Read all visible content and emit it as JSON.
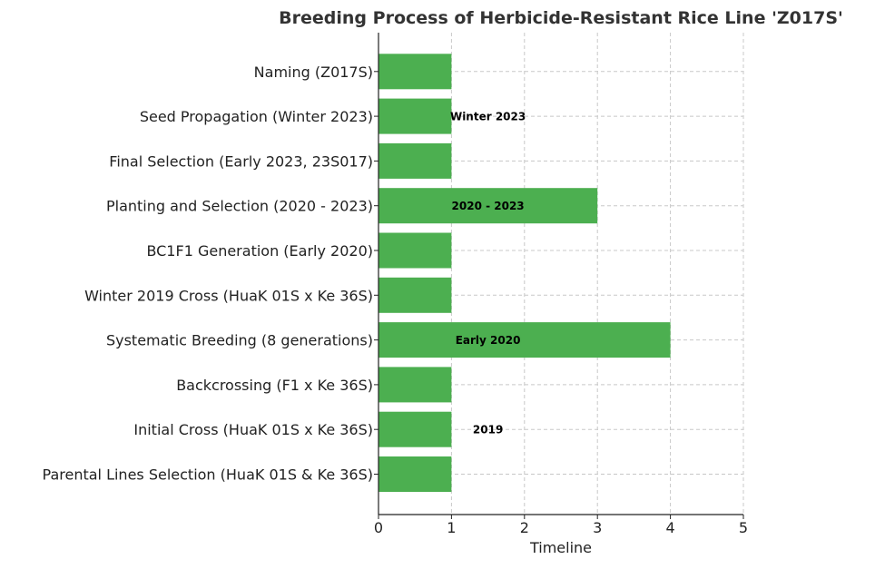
{
  "chart_data": {
    "type": "bar",
    "orientation": "horizontal",
    "title": "Breeding Process of Herbicide-Resistant Rice Line 'Z017S'",
    "xlabel": "Timeline",
    "ylabel": "",
    "xlim": [
      0,
      5
    ],
    "xticks": [
      "0",
      "1",
      "2",
      "3",
      "4",
      "5"
    ],
    "grid": true,
    "categories": [
      "Parental Lines Selection (HuaK 01S & Ke 36S)",
      "Initial Cross (HuaK 01S x Ke 36S)",
      "Backcrossing (F1 x Ke 36S)",
      "Systematic Breeding (8 generations)",
      "Winter 2019 Cross (HuaK 01S x Ke 36S)",
      "BC1F1 Generation (Early 2020)",
      "Planting and Selection (2020 - 2023)",
      "Final Selection (Early 2023, 23S017)",
      "Seed Propagation (Winter 2023)",
      "Naming (Z017S)"
    ],
    "values": [
      1,
      1,
      1,
      4,
      1,
      1,
      3,
      1,
      1,
      1
    ],
    "bar_color": "#4caf50",
    "annotations": [
      {
        "text": "2019",
        "x": 1.5,
        "category_index": 1
      },
      {
        "text": "Early 2020",
        "x": 1.5,
        "category_index": 3
      },
      {
        "text": "2020 - 2023",
        "x": 1.5,
        "category_index": 6
      },
      {
        "text": "Winter 2023",
        "x": 1.5,
        "category_index": 8
      }
    ]
  }
}
